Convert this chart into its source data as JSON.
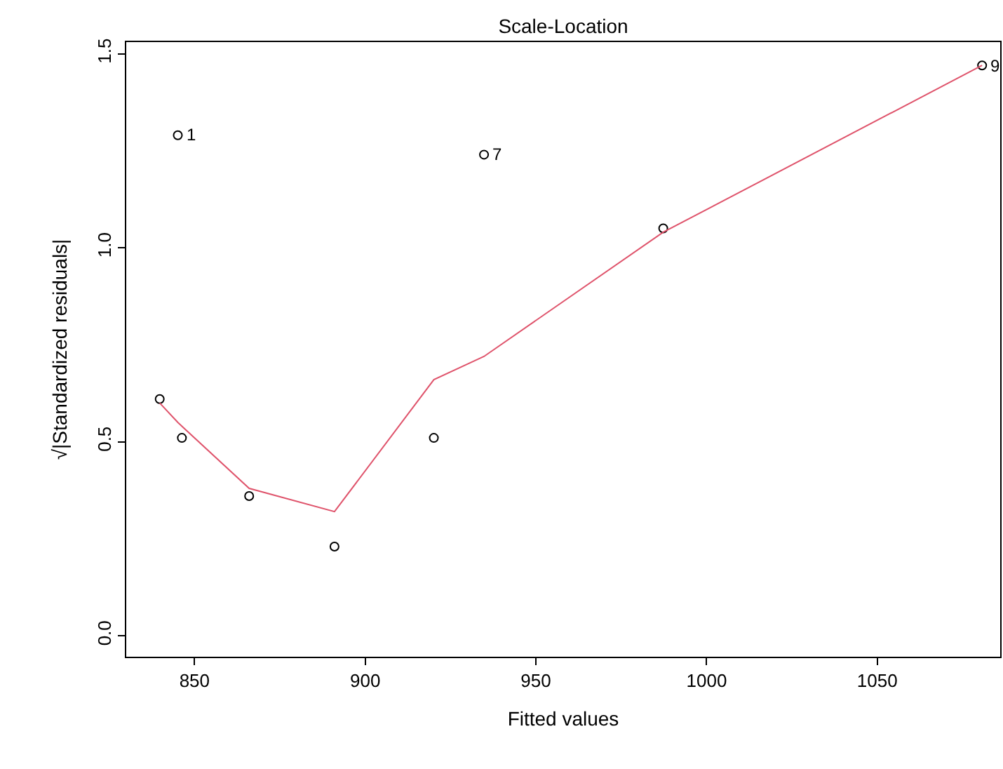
{
  "chart_data": {
    "type": "scatter",
    "title": "Scale-Location",
    "xlabel": "Fitted values",
    "ylabel": "√|Standardized residuals|",
    "xlim": [
      830,
      1086
    ],
    "ylim": [
      -0.054,
      1.53
    ],
    "xticks": [
      850,
      900,
      950,
      1000,
      1050
    ],
    "yticks": [
      {
        "value": 0,
        "label": "0.0"
      },
      0.5,
      {
        "value": 1,
        "label": "1.0"
      },
      1.5
    ],
    "series": [
      {
        "marker": "circle",
        "color": "#000000",
        "x": [
          839.8,
          845.1,
          846.3,
          866.0,
          891.0,
          920.1,
          934.8,
          987.3,
          1080.7
        ],
        "values": [
          0.61,
          1.29,
          0.51,
          0.36,
          0.23,
          0.51,
          1.24,
          1.05,
          1.47
        ]
      },
      {
        "type": "line",
        "marker": "none",
        "line_style": "solid",
        "color": "#df536b",
        "x": [
          839.8,
          845.1,
          846.3,
          866.0,
          891.0,
          920.1,
          934.8,
          987.3,
          1080.7
        ],
        "values": [
          0.6,
          0.55,
          0.54,
          0.38,
          0.32,
          0.66,
          0.72,
          1.04,
          1.47
        ]
      }
    ],
    "annotations": [
      {
        "text": "1",
        "x": 845.1,
        "y": 1.29
      },
      {
        "text": "7",
        "x": 934.8,
        "y": 1.24
      },
      {
        "text": "9",
        "x": 1080.7,
        "y": 1.47
      }
    ]
  }
}
